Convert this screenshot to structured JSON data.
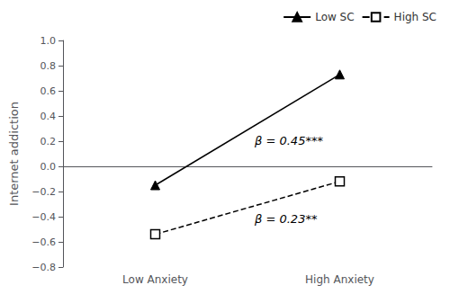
{
  "chart_data": {
    "type": "line",
    "ylabel": "Internet addiction",
    "categories": [
      "Low Anxiety",
      "High Anxiety"
    ],
    "series": [
      {
        "name": "Low SC",
        "color": "#000000",
        "values": [
          -0.15,
          0.73
        ],
        "marker": "triangle",
        "line_style": "solid"
      },
      {
        "name": "High SC",
        "color": "#000000",
        "values": [
          -0.54,
          -0.12
        ],
        "marker": "square-open",
        "line_style": "dashed"
      }
    ],
    "ylim": [
      -0.8,
      1.0
    ],
    "yticks": [
      {
        "value": -0.8,
        "label": "−0.8"
      },
      {
        "value": -0.6,
        "label": "−0.6"
      },
      {
        "value": -0.4,
        "label": "−0.4"
      },
      {
        "value": -0.2,
        "label": "−0.2"
      },
      {
        "value": 0.0,
        "label": "0.0"
      },
      0.2,
      0.4,
      0.6,
      0.8,
      {
        "value": 1.0,
        "label": "1.0"
      }
    ],
    "grid": false,
    "legend": "upper right",
    "annotations": [
      {
        "text": "β = 0.45***",
        "series": "Low SC"
      },
      {
        "text": "β = 0.23**",
        "series": "High SC"
      }
    ]
  }
}
